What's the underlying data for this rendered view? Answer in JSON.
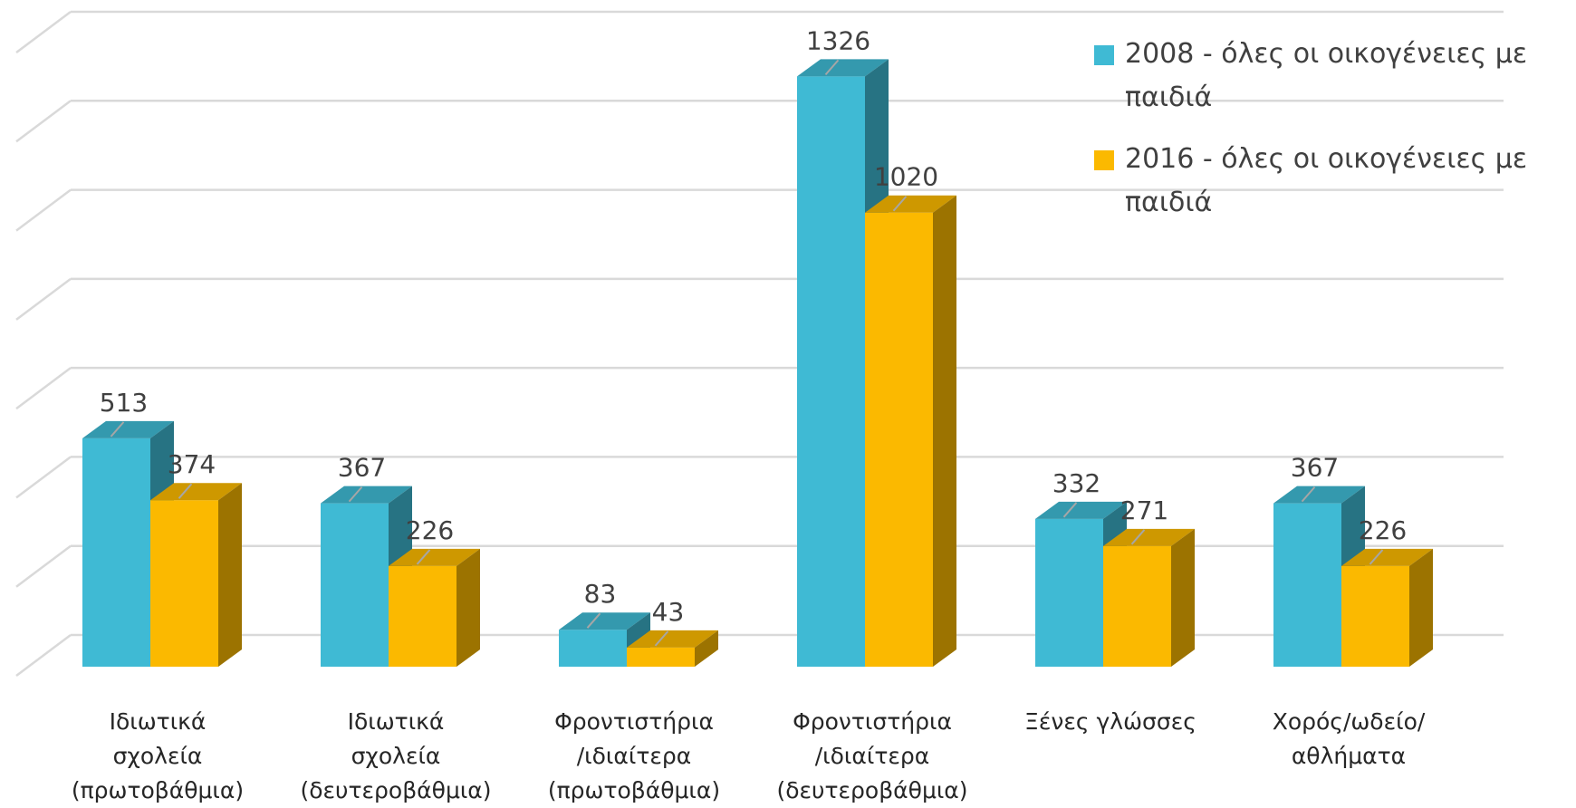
{
  "chart_data": {
    "type": "bar3d",
    "categories": [
      "Ιδιωτικά\nσχολεία\n(πρωτοβάθμια)",
      "Ιδιωτικά\nσχολεία\n(δευτεροβάθμια)",
      "Φροντιστήρια\n/ιδιαίτερα\n(πρωτοβάθμια)",
      "Φροντιστήρια\n/ιδιαίτερα\n(δευτεροβάθμια)",
      "Ξένες γλώσσες",
      "Χορός/ωδείο/\nαθλήματα"
    ],
    "series": [
      {
        "name": "2008 - όλες οι οικογένειες με παιδιά",
        "color": "#3fbad4",
        "values": [
          513,
          367,
          83,
          1326,
          332,
          367
        ]
      },
      {
        "name": "2016 - όλες οι οικογένειες με παιδιά",
        "color": "#fbb900",
        "values": [
          374,
          226,
          43,
          1020,
          271,
          226
        ]
      }
    ],
    "ylim": [
      0,
      1400
    ],
    "yticks": [
      0,
      200,
      400,
      600,
      800,
      1000,
      1200,
      1400
    ],
    "grid": true,
    "legend": "top-right"
  }
}
